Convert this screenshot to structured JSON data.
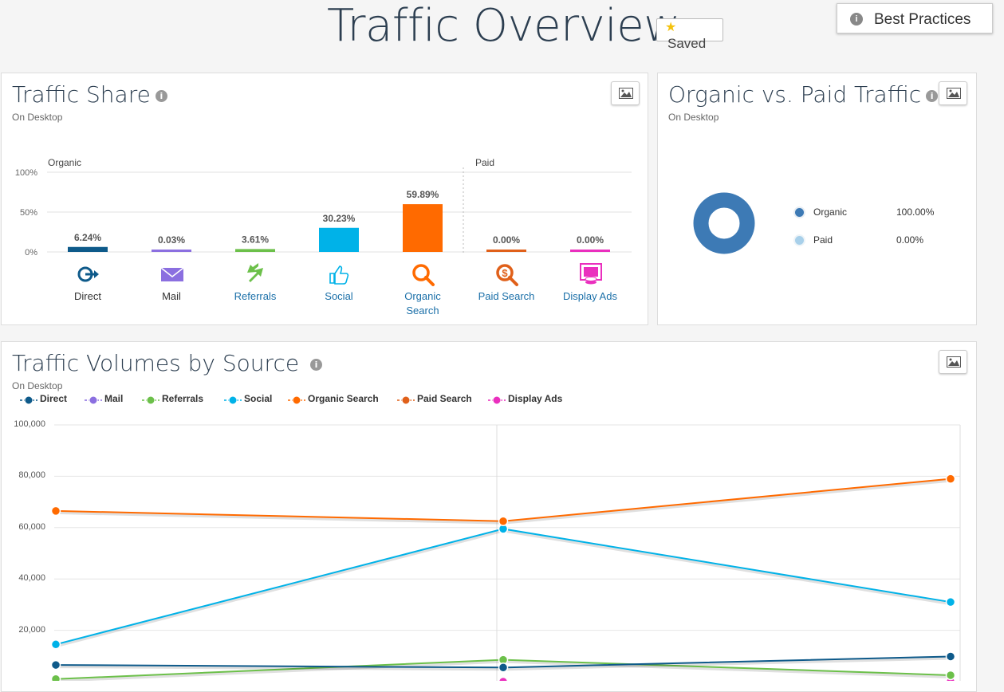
{
  "header": {
    "title": "Traffic Overview",
    "saved_label": "Saved",
    "best_practices_label": "Best Practices"
  },
  "traffic_share": {
    "title": "Traffic Share",
    "subtitle": "On Desktop",
    "organic_label": "Organic",
    "paid_label": "Paid",
    "y_ticks": [
      "100%",
      "50%",
      "0%"
    ],
    "channels": [
      {
        "name": "Direct",
        "value": 6.24,
        "label": "6.24%",
        "color": "#0e5a8a",
        "text_color": "#333333"
      },
      {
        "name": "Mail",
        "value": 0.03,
        "label": "0.03%",
        "color": "#8b6fe0",
        "text_color": "#333333"
      },
      {
        "name": "Referrals",
        "value": 3.61,
        "label": "3.61%",
        "color": "#6cc04a",
        "text_color": "#1a6fa8"
      },
      {
        "name": "Social",
        "value": 30.23,
        "label": "30.23%",
        "color": "#00b2e8",
        "text_color": "#1a6fa8"
      },
      {
        "name": "Organic Search",
        "line1": "Organic",
        "line2": "Search",
        "value": 59.89,
        "label": "59.89%",
        "color": "#ff6a00",
        "text_color": "#1a6fa8"
      },
      {
        "name": "Paid Search",
        "value": 0.0,
        "label": "0.00%",
        "color": "#e0601a",
        "text_color": "#1a6fa8"
      },
      {
        "name": "Display Ads",
        "value": 0.0,
        "label": "0.00%",
        "color": "#ea2fbe",
        "text_color": "#1a6fa8"
      }
    ]
  },
  "organic_paid": {
    "title": "Organic vs. Paid Traffic",
    "subtitle": "On Desktop",
    "items": [
      {
        "name": "Organic",
        "value": "100.00%",
        "share": 100,
        "color": "#3d7ab5"
      },
      {
        "name": "Paid",
        "value": "0.00%",
        "share": 0,
        "color": "#a8d0ea"
      }
    ]
  },
  "volumes": {
    "title": "Traffic Volumes by Source",
    "subtitle": "On Desktop"
  },
  "chart_data": {
    "type": "line",
    "title": "Traffic Volumes by Source",
    "ylim": [
      0,
      100000
    ],
    "y_ticks": [
      "100,000",
      "80,000",
      "60,000",
      "40,000",
      "20,000"
    ],
    "x": [
      0,
      1,
      2
    ],
    "series": [
      {
        "name": "Direct",
        "color": "#0e5a8a",
        "values": [
          6500,
          5500,
          9800
        ]
      },
      {
        "name": "Mail",
        "color": "#8b6fe0",
        "values": [
          0,
          0,
          0
        ]
      },
      {
        "name": "Referrals",
        "color": "#6cc04a",
        "values": [
          1000,
          8500,
          2500
        ]
      },
      {
        "name": "Social",
        "color": "#00b2e8",
        "values": [
          14500,
          59500,
          31000
        ]
      },
      {
        "name": "Organic Search",
        "color": "#ff6a00",
        "values": [
          66500,
          62500,
          79000
        ]
      },
      {
        "name": "Paid Search",
        "color": "#e0601a",
        "values": [
          0,
          0,
          0
        ]
      },
      {
        "name": "Display Ads",
        "color": "#ea2fbe",
        "values": [
          0,
          0,
          0
        ]
      }
    ]
  }
}
